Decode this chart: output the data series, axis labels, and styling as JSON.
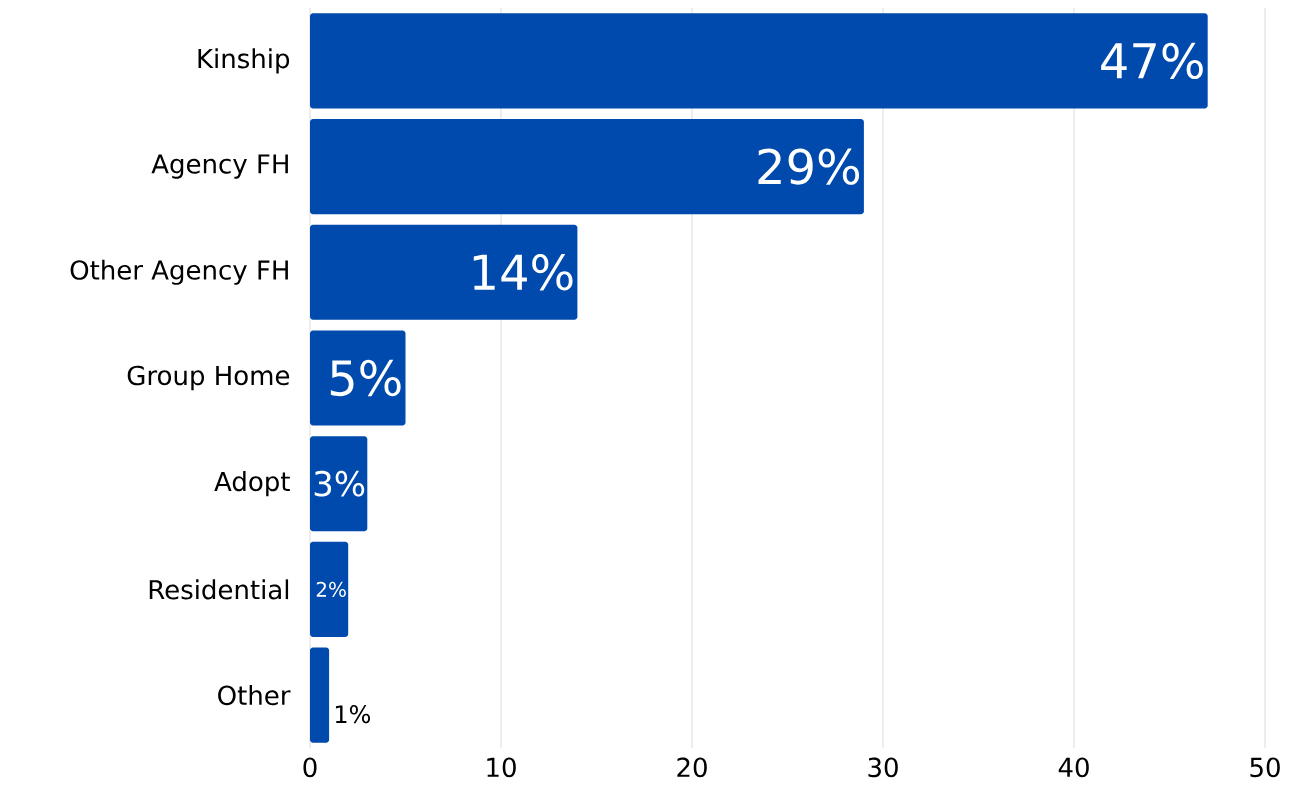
{
  "chart_data": {
    "type": "bar",
    "orientation": "horizontal",
    "categories": [
      "Kinship",
      "Agency FH",
      "Other Agency FH",
      "Group Home",
      "Adopt",
      "Residential",
      "Other"
    ],
    "values": [
      47,
      29,
      14,
      5,
      3,
      2,
      1
    ],
    "value_labels": [
      "47%",
      "29%",
      "14%",
      "5%",
      "3%",
      "2%",
      "1%"
    ],
    "color": "#004aad",
    "xlim": [
      0,
      50
    ],
    "xticks": [
      0,
      10,
      20,
      30,
      40,
      50
    ],
    "grid": "x"
  }
}
